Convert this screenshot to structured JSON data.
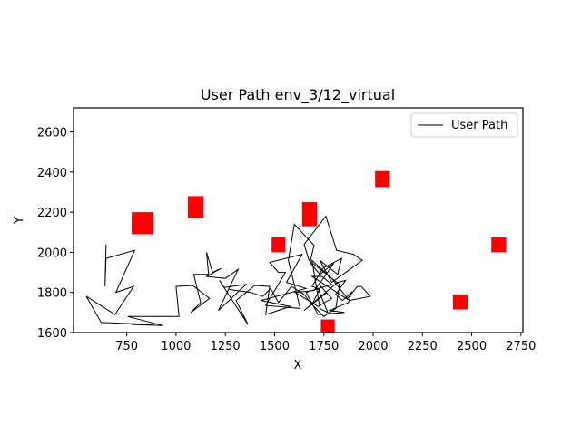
{
  "chart_data": {
    "type": "line",
    "title": "User Path env_3/12_virtual",
    "xlabel": "X",
    "ylabel": "Y",
    "xlim": [
      480,
      2760
    ],
    "ylim": [
      1600,
      2720
    ],
    "xticks": [
      750,
      1000,
      1250,
      1500,
      1750,
      2000,
      2250,
      2500,
      2750
    ],
    "yticks": [
      1600,
      1800,
      2000,
      2200,
      2400,
      2600
    ],
    "grid": false,
    "legend": {
      "position": "top-right",
      "entries": [
        "User Path"
      ]
    },
    "colors": {
      "path": "#000000",
      "obstacle": "#ff0000",
      "frame": "#000000"
    },
    "series": [
      {
        "name": "User Path",
        "points": [
          [
            645,
            2040
          ],
          [
            640,
            1830
          ],
          [
            645,
            1970
          ],
          [
            790,
            2010
          ],
          [
            695,
            1800
          ],
          [
            785,
            1830
          ],
          [
            690,
            1690
          ],
          [
            545,
            1780
          ],
          [
            620,
            1650
          ],
          [
            880,
            1640
          ],
          [
            775,
            1640
          ],
          [
            935,
            1635
          ],
          [
            755,
            1680
          ],
          [
            1015,
            1680
          ],
          [
            1000,
            1830
          ],
          [
            1085,
            1835
          ],
          [
            1170,
            1770
          ],
          [
            1075,
            1700
          ],
          [
            1125,
            1750
          ],
          [
            1090,
            1890
          ],
          [
            1165,
            1890
          ],
          [
            1155,
            2000
          ],
          [
            1185,
            1900
          ],
          [
            1230,
            1920
          ],
          [
            1155,
            1880
          ],
          [
            1250,
            1870
          ],
          [
            1315,
            1915
          ],
          [
            1215,
            1710
          ],
          [
            1355,
            1840
          ],
          [
            1245,
            1825
          ],
          [
            1220,
            1860
          ],
          [
            1365,
            1640
          ],
          [
            1305,
            1760
          ],
          [
            1400,
            1835
          ],
          [
            1475,
            1830
          ],
          [
            1455,
            1690
          ],
          [
            1580,
            1730
          ],
          [
            1430,
            1760
          ],
          [
            1660,
            1820
          ],
          [
            1560,
            1850
          ],
          [
            1640,
            1990
          ],
          [
            1475,
            1950
          ],
          [
            1520,
            1900
          ],
          [
            1555,
            1900
          ],
          [
            1455,
            1735
          ],
          [
            1630,
            1720
          ],
          [
            1570,
            1960
          ],
          [
            1600,
            2140
          ],
          [
            1700,
            2035
          ],
          [
            1680,
            1950
          ],
          [
            1730,
            1890
          ],
          [
            1800,
            1945
          ],
          [
            1755,
            1880
          ],
          [
            1700,
            1810
          ],
          [
            1605,
            1800
          ],
          [
            1720,
            1730
          ],
          [
            1790,
            1770
          ],
          [
            1735,
            1830
          ],
          [
            1690,
            1740
          ],
          [
            1765,
            1800
          ],
          [
            1650,
            1710
          ],
          [
            1820,
            1850
          ],
          [
            1860,
            1860
          ],
          [
            1810,
            1790
          ],
          [
            1845,
            1760
          ],
          [
            1890,
            1800
          ],
          [
            1875,
            1750
          ],
          [
            1780,
            1710
          ],
          [
            1855,
            1700
          ],
          [
            1720,
            1690
          ],
          [
            1660,
            1800
          ],
          [
            1790,
            1840
          ],
          [
            1740,
            1880
          ],
          [
            1690,
            1880
          ],
          [
            1880,
            1760
          ],
          [
            1985,
            1780
          ],
          [
            1940,
            1830
          ],
          [
            1920,
            1830
          ],
          [
            1870,
            1770
          ],
          [
            1790,
            1870
          ],
          [
            1690,
            1960
          ],
          [
            1730,
            1720
          ],
          [
            1770,
            1700
          ],
          [
            1720,
            1820
          ],
          [
            1690,
            1830
          ],
          [
            1745,
            1920
          ],
          [
            1840,
            1970
          ],
          [
            1820,
            1890
          ],
          [
            1730,
            1960
          ],
          [
            1790,
            1850
          ],
          [
            1945,
            1960
          ],
          [
            1900,
            1990
          ],
          [
            1815,
            2010
          ],
          [
            1760,
            2180
          ],
          [
            1650,
            2040
          ],
          [
            1675,
            1960
          ],
          [
            1830,
            1840
          ],
          [
            1810,
            1720
          ],
          [
            1750,
            1680
          ],
          [
            1690,
            1740
          ],
          [
            1650,
            1790
          ],
          [
            1585,
            1830
          ],
          [
            1520,
            1750
          ],
          [
            1480,
            1820
          ],
          [
            1440,
            1780
          ],
          [
            1380,
            1800
          ],
          [
            1270,
            1815
          ]
        ]
      }
    ],
    "obstacles": [
      {
        "x0": 775,
        "x1": 885,
        "y0": 2090,
        "y1": 2200
      },
      {
        "x0": 1060,
        "x1": 1140,
        "y0": 2170,
        "y1": 2280
      },
      {
        "x0": 1640,
        "x1": 1715,
        "y0": 2130,
        "y1": 2250
      },
      {
        "x0": 1485,
        "x1": 1555,
        "y0": 2000,
        "y1": 2075
      },
      {
        "x0": 2010,
        "x1": 2085,
        "y0": 2325,
        "y1": 2405
      },
      {
        "x0": 2600,
        "x1": 2675,
        "y0": 2000,
        "y1": 2075
      },
      {
        "x0": 2405,
        "x1": 2480,
        "y0": 1715,
        "y1": 1790
      },
      {
        "x0": 1735,
        "x1": 1805,
        "y0": 1600,
        "y1": 1665
      }
    ]
  }
}
